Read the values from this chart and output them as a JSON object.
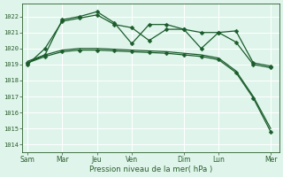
{
  "bg_color": "#cceedd",
  "plot_bg": "#dff5ec",
  "grid_color": "#ffffff",
  "line_color": "#1a5c2a",
  "xlabel": "Pression niveau de la mer( hPa )",
  "ylim": [
    1013.5,
    1022.8
  ],
  "yticks": [
    1014,
    1015,
    1016,
    1017,
    1018,
    1019,
    1020,
    1021,
    1022
  ],
  "xtick_labels": [
    "Sam",
    "Mar",
    "Jeu",
    "Ven",
    "Dim",
    "Lun",
    "Mer"
  ],
  "xtick_positions": [
    0,
    2,
    4,
    6,
    9,
    11,
    14
  ],
  "xlim": [
    -0.3,
    14.5
  ],
  "line1_x": [
    0,
    1,
    2,
    3,
    4,
    5,
    6,
    7,
    8,
    9,
    10,
    11,
    12,
    13,
    14
  ],
  "line1_y": [
    1019.0,
    1020.0,
    1021.7,
    1021.9,
    1022.1,
    1021.5,
    1021.3,
    1020.5,
    1021.2,
    1021.2,
    1021.0,
    1021.0,
    1020.4,
    1019.0,
    1018.8
  ],
  "line2_x": [
    0,
    1,
    2,
    3,
    4,
    5,
    6,
    7,
    8,
    9,
    10,
    11,
    12,
    13,
    14
  ],
  "line2_y": [
    1019.1,
    1019.6,
    1021.8,
    1022.0,
    1022.3,
    1021.6,
    1020.3,
    1021.5,
    1021.5,
    1021.2,
    1020.0,
    1021.0,
    1021.1,
    1019.1,
    1018.9
  ],
  "line3_x": [
    0,
    1,
    2,
    3,
    4,
    5,
    6,
    7,
    8,
    9,
    10,
    11,
    12,
    13,
    14
  ],
  "line3_y": [
    1019.1,
    1019.5,
    1019.8,
    1019.9,
    1019.9,
    1019.85,
    1019.8,
    1019.75,
    1019.7,
    1019.6,
    1019.5,
    1019.3,
    1018.5,
    1016.9,
    1014.8
  ],
  "line4_x": [
    0,
    1,
    2,
    3,
    4,
    5,
    6,
    7,
    8,
    9,
    10,
    11,
    12,
    13,
    14
  ],
  "line4_y": [
    1019.2,
    1019.6,
    1019.9,
    1020.0,
    1020.0,
    1019.95,
    1019.9,
    1019.85,
    1019.8,
    1019.7,
    1019.6,
    1019.4,
    1018.6,
    1017.0,
    1015.0
  ]
}
